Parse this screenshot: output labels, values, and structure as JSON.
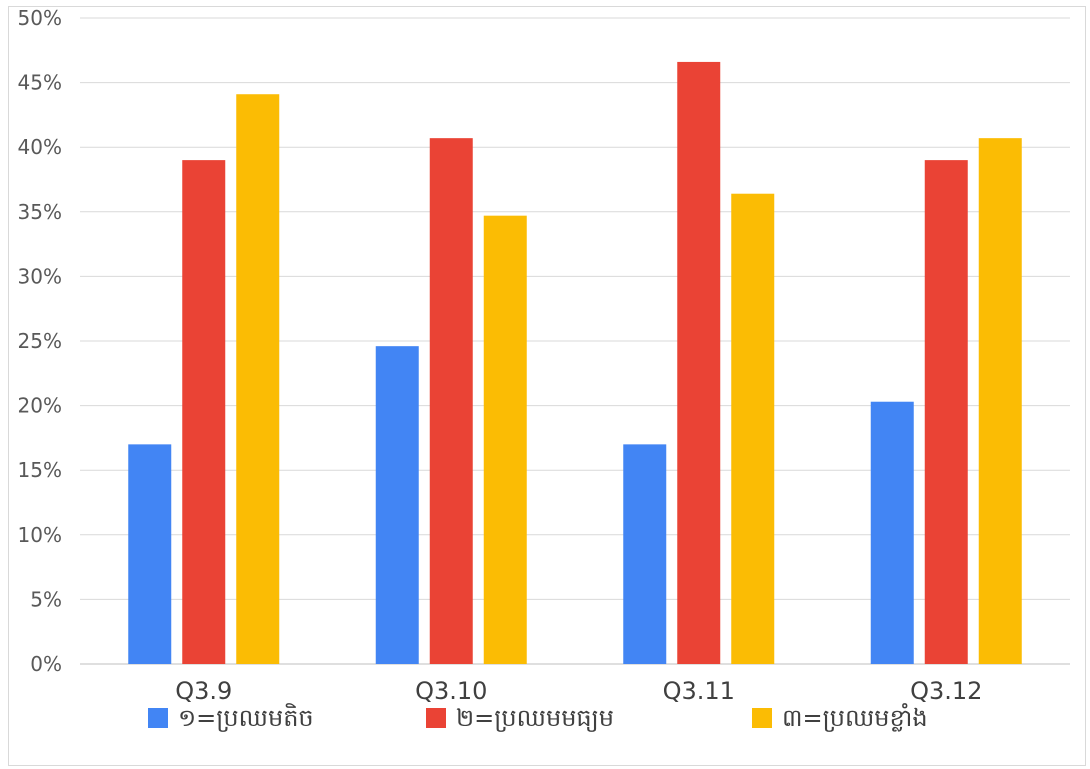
{
  "chart_data": {
    "type": "bar",
    "categories": [
      "Q3.9",
      "Q3.10",
      "Q3.11",
      "Q3.12"
    ],
    "series": [
      {
        "name": "១=ប្រឈមតិច",
        "values": [
          17,
          24.6,
          17,
          20.3
        ],
        "color": "#4285F4"
      },
      {
        "name": "២=ប្រឈមមធ្យម",
        "values": [
          39,
          40.7,
          46.6,
          39
        ],
        "color": "#EA4335"
      },
      {
        "name": "៣=ប្រឈមខ្លាំង",
        "values": [
          44.1,
          34.7,
          36.4,
          40.7
        ],
        "color": "#FBBC04"
      }
    ],
    "y_ticks": [
      "0%",
      "5%",
      "10%",
      "15%",
      "20%",
      "25%",
      "30%",
      "35%",
      "40%",
      "45%",
      "50%"
    ],
    "ylim": [
      0,
      50
    ],
    "grid": true,
    "legend_position": "bottom"
  }
}
